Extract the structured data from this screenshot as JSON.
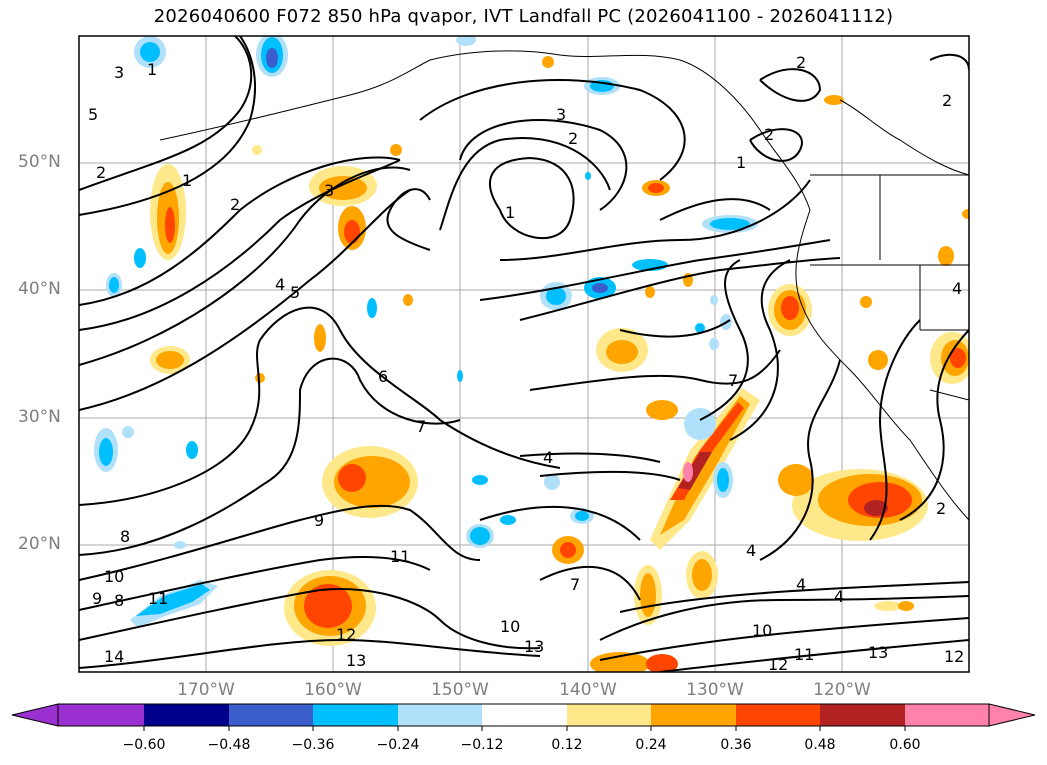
{
  "title": "2026040600 F072 850 hPa qvapor, IVT Landfall PC (2026041100 - 2026041112)",
  "map": {
    "lon_range": [
      -180,
      -110
    ],
    "lat_range": [
      10,
      60
    ],
    "lat_labels": [
      "50°N",
      "40°N",
      "30°N",
      "20°N"
    ],
    "lon_labels": [
      "170°W",
      "160°W",
      "150°W",
      "140°W",
      "130°W",
      "120°W"
    ],
    "gridlines": true,
    "contour_labels": [
      "1",
      "2",
      "3",
      "4",
      "5",
      "6",
      "7",
      "8",
      "9",
      "10",
      "11",
      "12",
      "13",
      "14"
    ]
  },
  "colorbar": {
    "ticks": [
      "−0.60",
      "−0.48",
      "−0.36",
      "−0.24",
      "−0.12",
      "0.12",
      "0.24",
      "0.36",
      "0.48",
      "0.60"
    ],
    "colors": [
      "#9b30d0",
      "#00008b",
      "#3a5fcd",
      "#00bfff",
      "#b0e0fa",
      "#ffffff",
      "#ffe88a",
      "#ffa500",
      "#ff4500",
      "#b22222",
      "#ff82ab"
    ],
    "extend": "both"
  }
}
